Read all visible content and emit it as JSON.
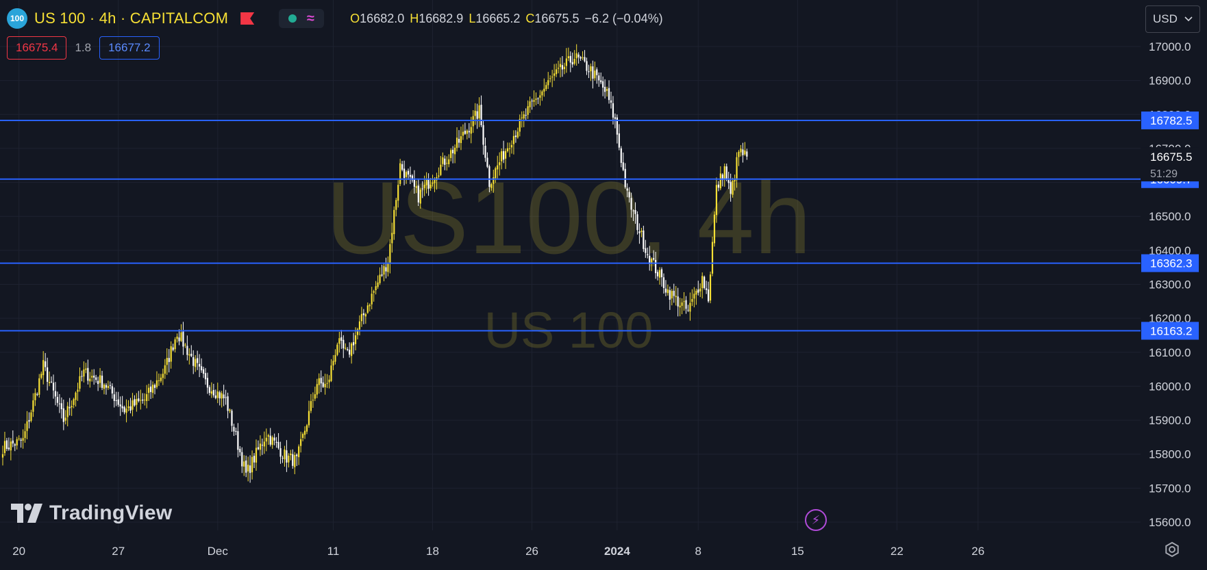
{
  "header": {
    "symbol_badge": "100",
    "title": "US 100 · 4h · CAPITALCOM",
    "ohlc": {
      "open_label": "O",
      "open": "16682.0",
      "high_label": "H",
      "high": "16682.9",
      "low_label": "L",
      "low": "16665.2",
      "close_label": "C",
      "close": "16675.5",
      "change": "−6.2 (−0.04%)"
    }
  },
  "trade": {
    "sell": "16675.4",
    "spread": "1.8",
    "buy": "16677.2"
  },
  "currency": "USD",
  "watermark": {
    "main": "US100, 4h",
    "sub": "US 100"
  },
  "branding": {
    "logo_text": "TradingView"
  },
  "colors": {
    "background": "#131722",
    "up_candle": "#f7e035",
    "down_candle": "#ffffff",
    "hline": "#2962ff",
    "grid": "#1e2230",
    "axis_text": "#d1d4dc"
  },
  "chart_data": {
    "type": "candlestick",
    "timeframe": "4h",
    "ylim": [
      15570,
      17070
    ],
    "y_ticks": [
      "17000.0",
      "16900.0",
      "16800.0",
      "16700.0",
      "16600.0",
      "16500.0",
      "16400.0",
      "16300.0",
      "16200.0",
      "16100.0",
      "16000.0",
      "15900.0",
      "15800.0",
      "15700.0",
      "15600.0"
    ],
    "x_ticks": [
      {
        "label": "20",
        "bar": 8
      },
      {
        "label": "27",
        "bar": 57
      },
      {
        "label": "Dec",
        "bar": 106
      },
      {
        "label": "11",
        "bar": 163
      },
      {
        "label": "18",
        "bar": 212
      },
      {
        "label": "26",
        "bar": 261
      },
      {
        "label": "2024",
        "bar": 303
      },
      {
        "label": "8",
        "bar": 343
      },
      {
        "label": "15",
        "bar": 392
      },
      {
        "label": "22",
        "bar": 441
      },
      {
        "label": "26",
        "bar": 481
      }
    ],
    "horizontal_lines": [
      {
        "price": 16782.5,
        "label": "16782.5"
      },
      {
        "price": 16609.7,
        "label": "16609.7"
      },
      {
        "price": 16362.3,
        "label": "16362.3"
      },
      {
        "price": 16163.2,
        "label": "16163.2"
      }
    ],
    "last_price": "16675.5",
    "countdown": "51:29",
    "anchors": [
      [
        0,
        15820
      ],
      [
        10,
        15840
      ],
      [
        20,
        16060
      ],
      [
        30,
        15900
      ],
      [
        40,
        16040
      ],
      [
        50,
        16010
      ],
      [
        60,
        15930
      ],
      [
        70,
        15960
      ],
      [
        80,
        16050
      ],
      [
        86,
        16160
      ],
      [
        100,
        16010
      ],
      [
        110,
        15960
      ],
      [
        120,
        15740
      ],
      [
        130,
        15860
      ],
      [
        140,
        15790
      ],
      [
        145,
        15780
      ],
      [
        155,
        16010
      ],
      [
        160,
        16000
      ],
      [
        165,
        16130
      ],
      [
        170,
        16090
      ],
      [
        180,
        16240
      ],
      [
        190,
        16370
      ],
      [
        196,
        16650
      ],
      [
        205,
        16560
      ],
      [
        215,
        16640
      ],
      [
        225,
        16720
      ],
      [
        235,
        16810
      ],
      [
        240,
        16600
      ],
      [
        250,
        16720
      ],
      [
        260,
        16820
      ],
      [
        270,
        16900
      ],
      [
        282,
        16970
      ],
      [
        290,
        16930
      ],
      [
        298,
        16860
      ],
      [
        302,
        16780
      ],
      [
        308,
        16560
      ],
      [
        318,
        16390
      ],
      [
        328,
        16280
      ],
      [
        338,
        16220
      ],
      [
        345,
        16320
      ],
      [
        348,
        16260
      ],
      [
        352,
        16580
      ],
      [
        356,
        16640
      ],
      [
        359,
        16560
      ],
      [
        363,
        16690
      ],
      [
        367,
        16676
      ]
    ]
  }
}
